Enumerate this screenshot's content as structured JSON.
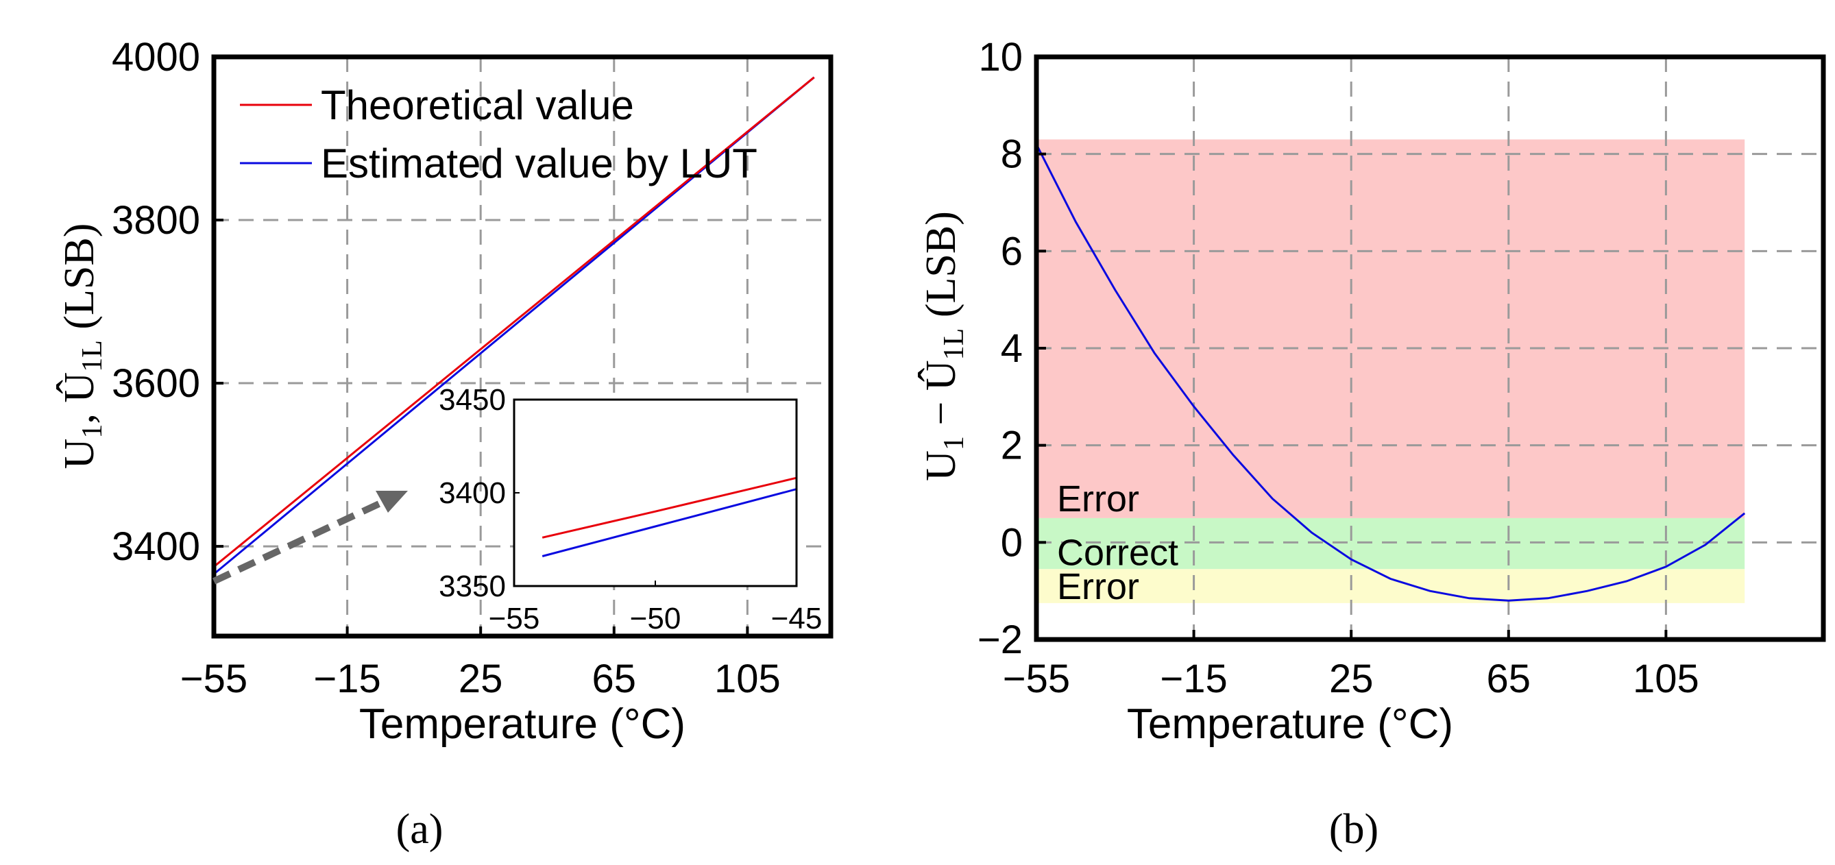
{
  "chart_data": [
    {
      "type": "line",
      "panel_label": "(a)",
      "xlabel": "Temperature (°C)",
      "ylabel": "U1, Û1L (LSB)",
      "xlim": [
        -55,
        130
      ],
      "ylim": [
        3290,
        4000
      ],
      "xticks": [
        -55,
        -15,
        25,
        65,
        105
      ],
      "yticks": [
        3400,
        3600,
        3800,
        4000
      ],
      "grid": true,
      "legend_position": "top-left",
      "series": [
        {
          "name": "Theoretical value",
          "color": "#e8000b",
          "x": [
            -55,
            125
          ],
          "y": [
            3375,
            3975
          ]
        },
        {
          "name": "Estimated value by LUT",
          "color": "#0a0ae0",
          "x": [
            -55,
            125
          ],
          "y": [
            3366,
            3975
          ]
        }
      ],
      "inset": {
        "xlim": [
          -55,
          -45
        ],
        "ylim": [
          3350,
          3450
        ],
        "xticks": [
          -55,
          -50,
          -45
        ],
        "yticks": [
          3350,
          3400,
          3450
        ],
        "series": [
          {
            "name": "Theoretical value",
            "color": "#e8000b",
            "x": [
              -54,
              -50,
              -45
            ],
            "y": [
              3376,
              3390,
              3408
            ]
          },
          {
            "name": "Estimated value by LUT",
            "color": "#0a0ae0",
            "x": [
              -54,
              -50,
              -45
            ],
            "y": [
              3366,
              3382,
              3402
            ]
          }
        ]
      }
    },
    {
      "type": "line",
      "panel_label": "(b)",
      "xlabel": "Temperature (°C)",
      "ylabel": "U1 − Û1L (LSB)",
      "xlim": [
        -55,
        145
      ],
      "ylim": [
        -2,
        10
      ],
      "xticks": [
        -55,
        -15,
        25,
        65,
        105
      ],
      "yticks": [
        -2,
        0,
        2,
        4,
        6,
        8,
        10
      ],
      "grid": true,
      "series": [
        {
          "name": "U1 − Û1L",
          "color": "#0a0ae0",
          "x": [
            -55,
            -45,
            -35,
            -25,
            -15,
            -5,
            5,
            15,
            25,
            35,
            45,
            55,
            65,
            75,
            85,
            95,
            105,
            115,
            125
          ],
          "y": [
            8.2,
            6.6,
            5.2,
            3.9,
            2.8,
            1.8,
            0.9,
            0.2,
            -0.35,
            -0.75,
            -1.0,
            -1.15,
            -1.2,
            -1.15,
            -1.0,
            -0.8,
            -0.5,
            -0.05,
            0.6
          ]
        }
      ],
      "regions": [
        {
          "label": "Error",
          "y0": 0.5,
          "y1": 8.3,
          "color": "#fdc8c8"
        },
        {
          "label": "Correct",
          "y0": -0.55,
          "y1": 0.5,
          "color": "#c8f8c6"
        },
        {
          "label": "Error",
          "y0": -1.25,
          "y1": -0.55,
          "color": "#fdfccc"
        }
      ]
    }
  ]
}
